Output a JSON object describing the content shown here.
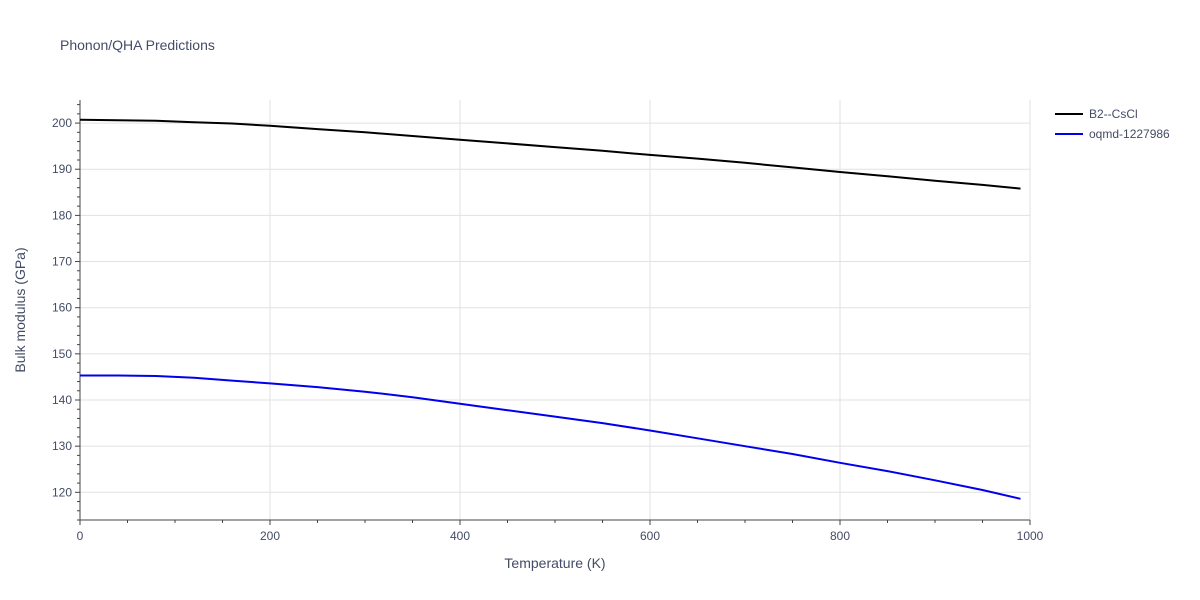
{
  "chart_data": {
    "type": "line",
    "title": "Phonon/QHA Predictions",
    "xlabel": "Temperature (K)",
    "ylabel": "Bulk modulus (GPa)",
    "xlim": [
      0,
      1000
    ],
    "ylim": [
      114,
      205
    ],
    "x_ticks": [
      0,
      200,
      400,
      600,
      800,
      1000
    ],
    "y_ticks": [
      120,
      130,
      140,
      150,
      160,
      170,
      180,
      190,
      200
    ],
    "grid": true,
    "legend_position": "top-right",
    "series": [
      {
        "name": "B2--CsCl",
        "color": "#000000",
        "x": [
          0,
          40,
          80,
          120,
          160,
          200,
          250,
          300,
          350,
          400,
          450,
          500,
          550,
          600,
          650,
          700,
          750,
          800,
          850,
          900,
          950,
          990
        ],
        "y": [
          200.7,
          200.6,
          200.5,
          200.2,
          199.9,
          199.4,
          198.7,
          198.0,
          197.2,
          196.4,
          195.6,
          194.8,
          194.0,
          193.1,
          192.3,
          191.4,
          190.4,
          189.4,
          188.5,
          187.5,
          186.6,
          185.8
        ]
      },
      {
        "name": "oqmd-1227986",
        "color": "#0000ee",
        "x": [
          0,
          40,
          80,
          120,
          160,
          200,
          250,
          300,
          350,
          400,
          450,
          500,
          550,
          600,
          650,
          700,
          750,
          800,
          850,
          900,
          950,
          990
        ],
        "y": [
          145.3,
          145.3,
          145.2,
          144.8,
          144.2,
          143.6,
          142.8,
          141.8,
          140.6,
          139.2,
          137.8,
          136.4,
          135.0,
          133.4,
          131.7,
          130.0,
          128.3,
          126.4,
          124.6,
          122.6,
          120.5,
          118.6
        ]
      }
    ]
  }
}
